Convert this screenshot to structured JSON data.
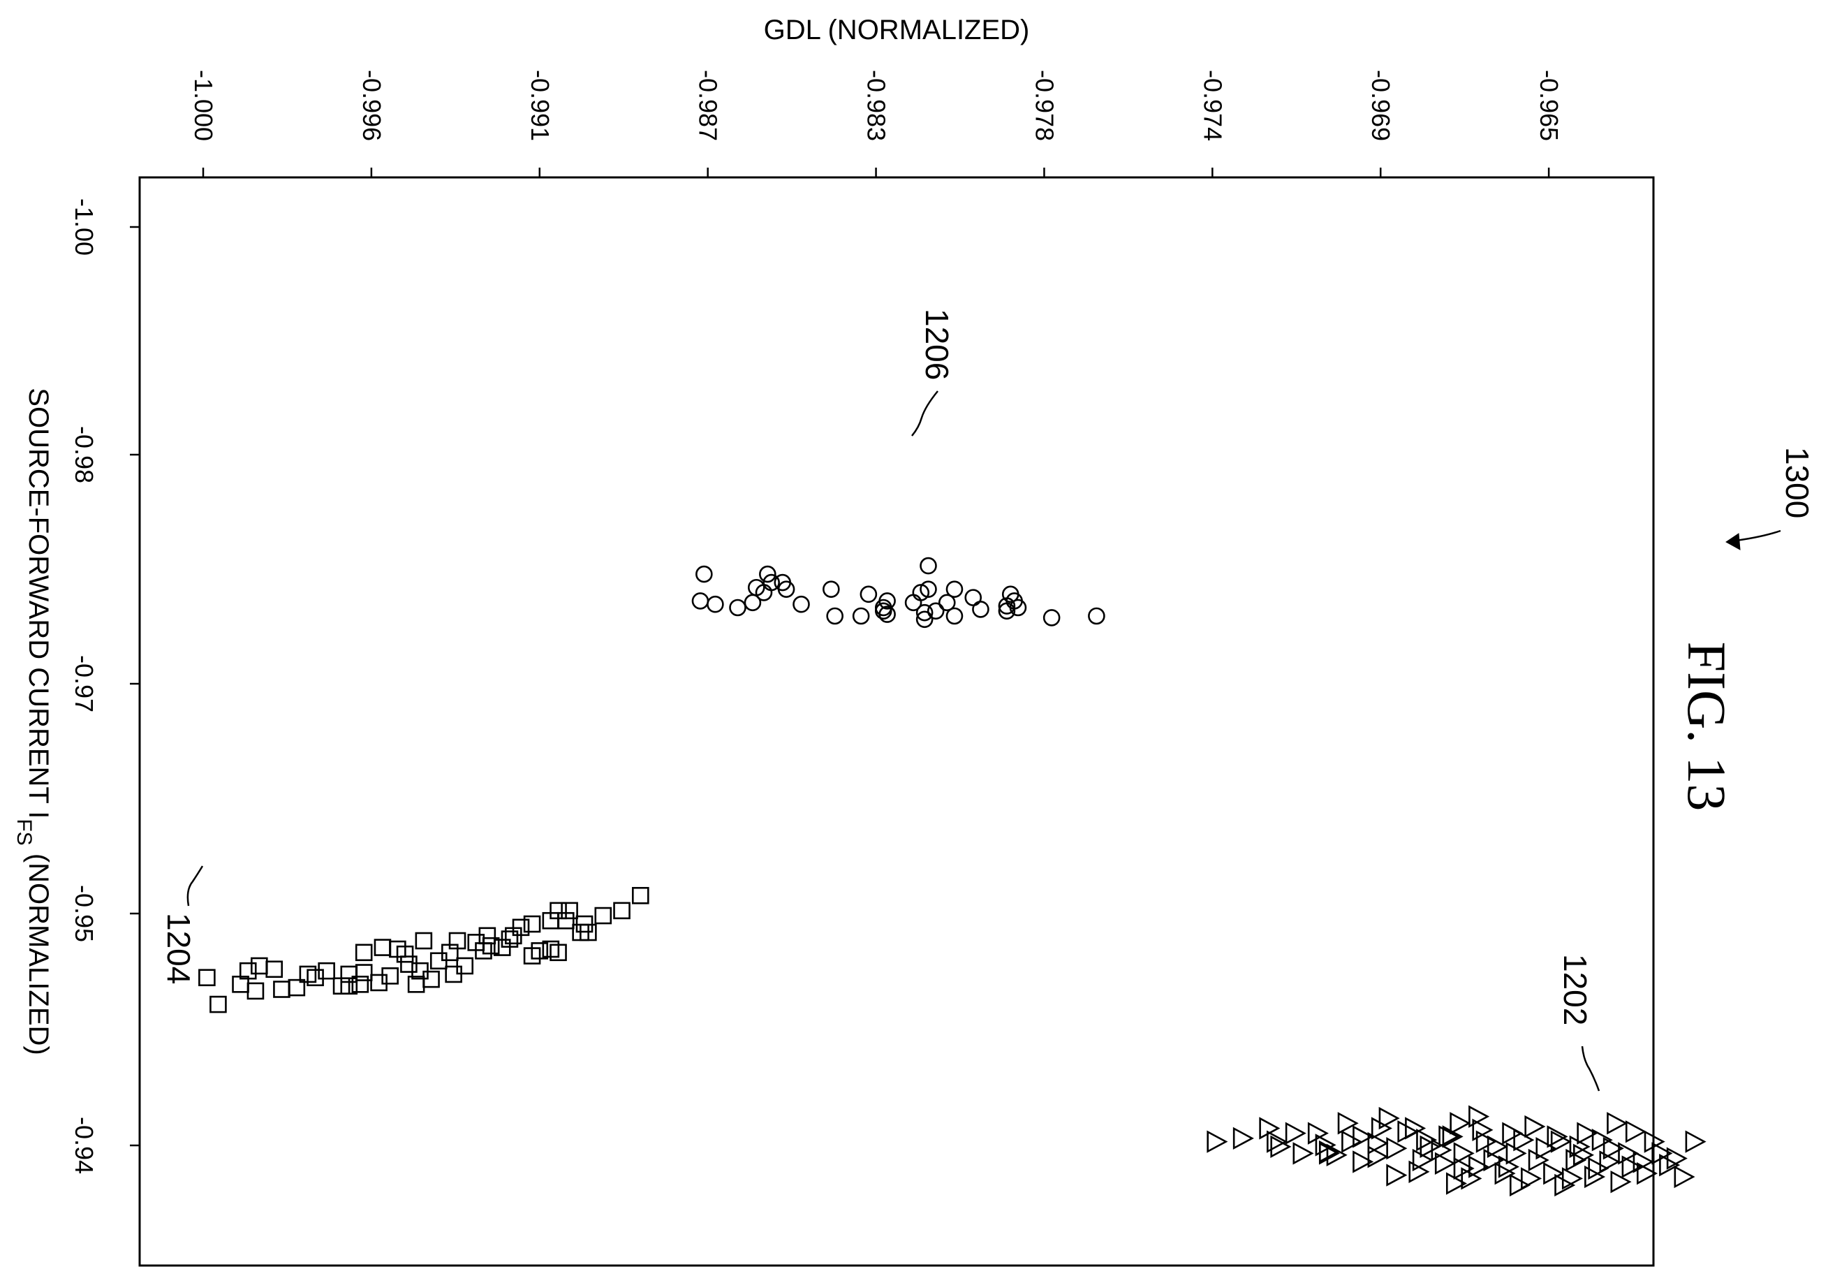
{
  "figure": {
    "title": "FIG. 13",
    "ref_number": "1300"
  },
  "chart_data": {
    "type": "scatter",
    "title": "",
    "xlabel": "GDL (NORMALIZED)",
    "ylabel_main": "SOURCE-FORWARD CURRENT I",
    "ylabel_sub": "FS",
    "ylabel_suffix": " (NORMALIZED)",
    "xlim": [
      -1.0017,
      -0.9612
    ],
    "ylim": [
      -1.0028,
      -0.9378
    ],
    "x_ticks": [
      -1.0,
      -0.9955,
      -0.991,
      -0.9865,
      -0.982,
      -0.9775,
      -0.973,
      -0.9685,
      -0.964
    ],
    "x_tick_labels": [
      "-1.000",
      "-0.996",
      "-0.991",
      "-0.987",
      "-0.983",
      "-0.978",
      "-0.974",
      "-0.969",
      "-0.965"
    ],
    "y_ticks": [
      -1.0,
      -0.98,
      -0.96,
      -0.94
    ],
    "y_tick_labels": [
      "-1.00",
      "-0.98",
      "-0.97",
      "-0.95",
      "-0.94"
    ],
    "grid": false,
    "series": [
      {
        "marker": "circle",
        "ref": "1206",
        "points": [
          [
            -0.9867,
            -0.9775
          ],
          [
            -0.9863,
            -0.9773
          ],
          [
            -0.9857,
            -0.9771
          ],
          [
            -0.9853,
            -0.9774
          ],
          [
            -0.985,
            -0.978
          ],
          [
            -0.9848,
            -0.9786
          ],
          [
            -0.9852,
            -0.9783
          ],
          [
            -0.9849,
            -0.9791
          ],
          [
            -0.9866,
            -0.9791
          ],
          [
            -0.9845,
            -0.9786
          ],
          [
            -0.9844,
            -0.9782
          ],
          [
            -0.984,
            -0.9773
          ],
          [
            -0.9832,
            -0.9782
          ],
          [
            -0.9824,
            -0.9766
          ],
          [
            -0.9831,
            -0.9766
          ],
          [
            -0.9822,
            -0.9779
          ],
          [
            -0.9818,
            -0.9771
          ],
          [
            -0.9818,
            -0.9769
          ],
          [
            -0.9817,
            -0.9775
          ],
          [
            -0.9817,
            -0.9767
          ],
          [
            -0.981,
            -0.9774
          ],
          [
            -0.9808,
            -0.978
          ],
          [
            -0.9806,
            -0.9782
          ],
          [
            -0.9807,
            -0.9764
          ],
          [
            -0.9807,
            -0.9768
          ],
          [
            -0.9804,
            -0.9769
          ],
          [
            -0.9801,
            -0.9774
          ],
          [
            -0.9799,
            -0.9766
          ],
          [
            -0.9799,
            -0.9782
          ],
          [
            -0.9794,
            -0.9777
          ],
          [
            -0.9792,
            -0.977
          ],
          [
            -0.9785,
            -0.9769
          ],
          [
            -0.9785,
            -0.9772
          ],
          [
            -0.9784,
            -0.9779
          ],
          [
            -0.9783,
            -0.9775
          ],
          [
            -0.9782,
            -0.9771
          ],
          [
            -0.9773,
            -0.9765
          ],
          [
            -0.9761,
            -0.9766
          ],
          [
            -0.9806,
            -0.9796
          ]
        ]
      },
      {
        "marker": "square",
        "ref": "1204",
        "points": [
          [
            -0.9999,
            -0.955
          ],
          [
            -0.9996,
            -0.9534
          ],
          [
            -0.9988,
            -0.9554
          ],
          [
            -0.999,
            -0.9546
          ],
          [
            -0.9986,
            -0.9542
          ],
          [
            -0.9985,
            -0.9557
          ],
          [
            -0.9981,
            -0.9555
          ],
          [
            -0.9979,
            -0.9543
          ],
          [
            -0.9975,
            -0.9544
          ],
          [
            -0.9972,
            -0.9552
          ],
          [
            -0.997,
            -0.955
          ],
          [
            -0.9967,
            -0.9554
          ],
          [
            -0.9963,
            -0.9545
          ],
          [
            -0.9961,
            -0.9552
          ],
          [
            -0.9961,
            -0.9545
          ],
          [
            -0.9958,
            -0.9546
          ],
          [
            -0.9957,
            -0.9553
          ],
          [
            -0.9957,
            -0.9565
          ],
          [
            -0.9953,
            -0.9547
          ],
          [
            -0.9952,
            -0.9568
          ],
          [
            -0.995,
            -0.9551
          ],
          [
            -0.9948,
            -0.9567
          ],
          [
            -0.9946,
            -0.9564
          ],
          [
            -0.9945,
            -0.9558
          ],
          [
            -0.9943,
            -0.9546
          ],
          [
            -0.9942,
            -0.9554
          ],
          [
            -0.9941,
            -0.9572
          ],
          [
            -0.9939,
            -0.9549
          ],
          [
            -0.9937,
            -0.956
          ],
          [
            -0.9934,
            -0.9565
          ],
          [
            -0.9933,
            -0.9552
          ],
          [
            -0.9932,
            -0.9572
          ],
          [
            -0.993,
            -0.9557
          ],
          [
            -0.9927,
            -0.9571
          ],
          [
            -0.9925,
            -0.9566
          ],
          [
            -0.9924,
            -0.9575
          ],
          [
            -0.9923,
            -0.9569
          ],
          [
            -0.992,
            -0.9568
          ],
          [
            -0.9918,
            -0.9573
          ],
          [
            -0.9917,
            -0.9575
          ],
          [
            -0.9915,
            -0.958
          ],
          [
            -0.9912,
            -0.9563
          ],
          [
            -0.9912,
            -0.9582
          ],
          [
            -0.991,
            -0.9566
          ],
          [
            -0.9907,
            -0.9567
          ],
          [
            -0.9907,
            -0.9584
          ],
          [
            -0.9905,
            -0.959
          ],
          [
            -0.9903,
            -0.9584
          ],
          [
            -0.9902,
            -0.959
          ],
          [
            -0.9905,
            -0.9565
          ],
          [
            -0.9897,
            -0.9577
          ],
          [
            -0.9893,
            -0.9587
          ],
          [
            -0.9899,
            -0.9577
          ],
          [
            -0.9898,
            -0.9582
          ],
          [
            -0.9888,
            -0.959
          ],
          [
            -0.9883,
            -0.9599
          ]
        ]
      },
      {
        "marker": "triangle-right",
        "ref": "1202",
        "points": [
          [
            -0.9729,
            -0.9452
          ],
          [
            -0.9722,
            -0.9454
          ],
          [
            -0.9715,
            -0.946
          ],
          [
            -0.9713,
            -0.9452
          ],
          [
            -0.9708,
            -0.9457
          ],
          [
            -0.9712,
            -0.9449
          ],
          [
            -0.9706,
            -0.9445
          ],
          [
            -0.9702,
            -0.9457
          ],
          [
            -0.97,
            -0.945
          ],
          [
            -0.9699,
            -0.9446
          ],
          [
            -0.9697,
            -0.9444
          ],
          [
            -0.9693,
            -0.9452
          ],
          [
            -0.9694,
            -0.9463
          ],
          [
            -0.969,
            -0.9455
          ],
          [
            -0.9686,
            -0.9451
          ],
          [
            -0.9686,
            -0.9443
          ],
          [
            -0.9683,
            -0.9466
          ],
          [
            -0.9681,
            -0.9432
          ],
          [
            -0.9681,
            -0.9448
          ],
          [
            -0.9678,
            -0.9458
          ],
          [
            -0.9676,
            -0.946
          ],
          [
            -0.9674,
            -0.9441
          ],
          [
            -0.9673,
            -0.9453
          ],
          [
            -0.9672,
            -0.9449
          ],
          [
            -0.9669,
            -0.9447
          ],
          [
            -0.9668,
            -0.9439
          ],
          [
            -0.9666,
            -0.9455
          ],
          [
            -0.9665,
            -0.9427
          ],
          [
            -0.9664,
            -0.9463
          ],
          [
            -0.9663,
            -0.9436
          ],
          [
            -0.9663,
            -0.9445
          ],
          [
            -0.9661,
            -0.943
          ],
          [
            -0.9659,
            -0.9467
          ],
          [
            -0.9658,
            -0.9459
          ],
          [
            -0.9657,
            -0.9452
          ],
          [
            -0.9655,
            -0.9441
          ],
          [
            -0.9654,
            -0.9449
          ],
          [
            -0.9652,
            -0.9433
          ],
          [
            -0.9651,
            -0.9437
          ],
          [
            -0.965,
            -0.9457
          ],
          [
            -0.9649,
            -0.9445
          ],
          [
            -0.9648,
            -0.9426
          ],
          [
            -0.9647,
            -0.9453
          ],
          [
            -0.9645,
            -0.943
          ],
          [
            -0.9644,
            -0.9461
          ],
          [
            -0.9643,
            -0.9441
          ],
          [
            -0.9641,
            -0.9448
          ],
          [
            -0.9639,
            -0.9433
          ],
          [
            -0.9638,
            -0.9455
          ],
          [
            -0.9637,
            -0.9452
          ],
          [
            -0.9636,
            -0.9426
          ],
          [
            -0.9634,
            -0.943
          ],
          [
            -0.9633,
            -0.9441
          ],
          [
            -0.9632,
            -0.9449
          ],
          [
            -0.9631,
            -0.9444
          ],
          [
            -0.963,
            -0.9457
          ],
          [
            -0.9628,
            -0.9431
          ],
          [
            -0.9627,
            -0.9436
          ],
          [
            -0.9626,
            -0.9453
          ],
          [
            -0.9624,
            -0.944
          ],
          [
            -0.9623,
            -0.9448
          ],
          [
            -0.9622,
            -0.9463
          ],
          [
            -0.9621,
            -0.9428
          ],
          [
            -0.9619,
            -0.9445
          ],
          [
            -0.9618,
            -0.9437
          ],
          [
            -0.9617,
            -0.9458
          ],
          [
            -0.9615,
            -0.944
          ],
          [
            -0.9614,
            -0.9433
          ],
          [
            -0.9612,
            -0.9452
          ],
          [
            -0.961,
            -0.9445
          ],
          [
            -0.9608,
            -0.9438
          ],
          [
            -0.9606,
            -0.9442
          ],
          [
            -0.9604,
            -0.9431
          ],
          [
            -0.9601,
            -0.9452
          ],
          [
            -0.9675,
            -0.9434
          ],
          [
            -0.9659,
            -0.9437
          ],
          [
            -0.969,
            -0.944
          ],
          [
            -0.9699,
            -0.9445
          ],
          [
            -0.9685,
            -0.946
          ],
          [
            -0.9667,
            -0.9455
          ]
        ]
      }
    ]
  }
}
